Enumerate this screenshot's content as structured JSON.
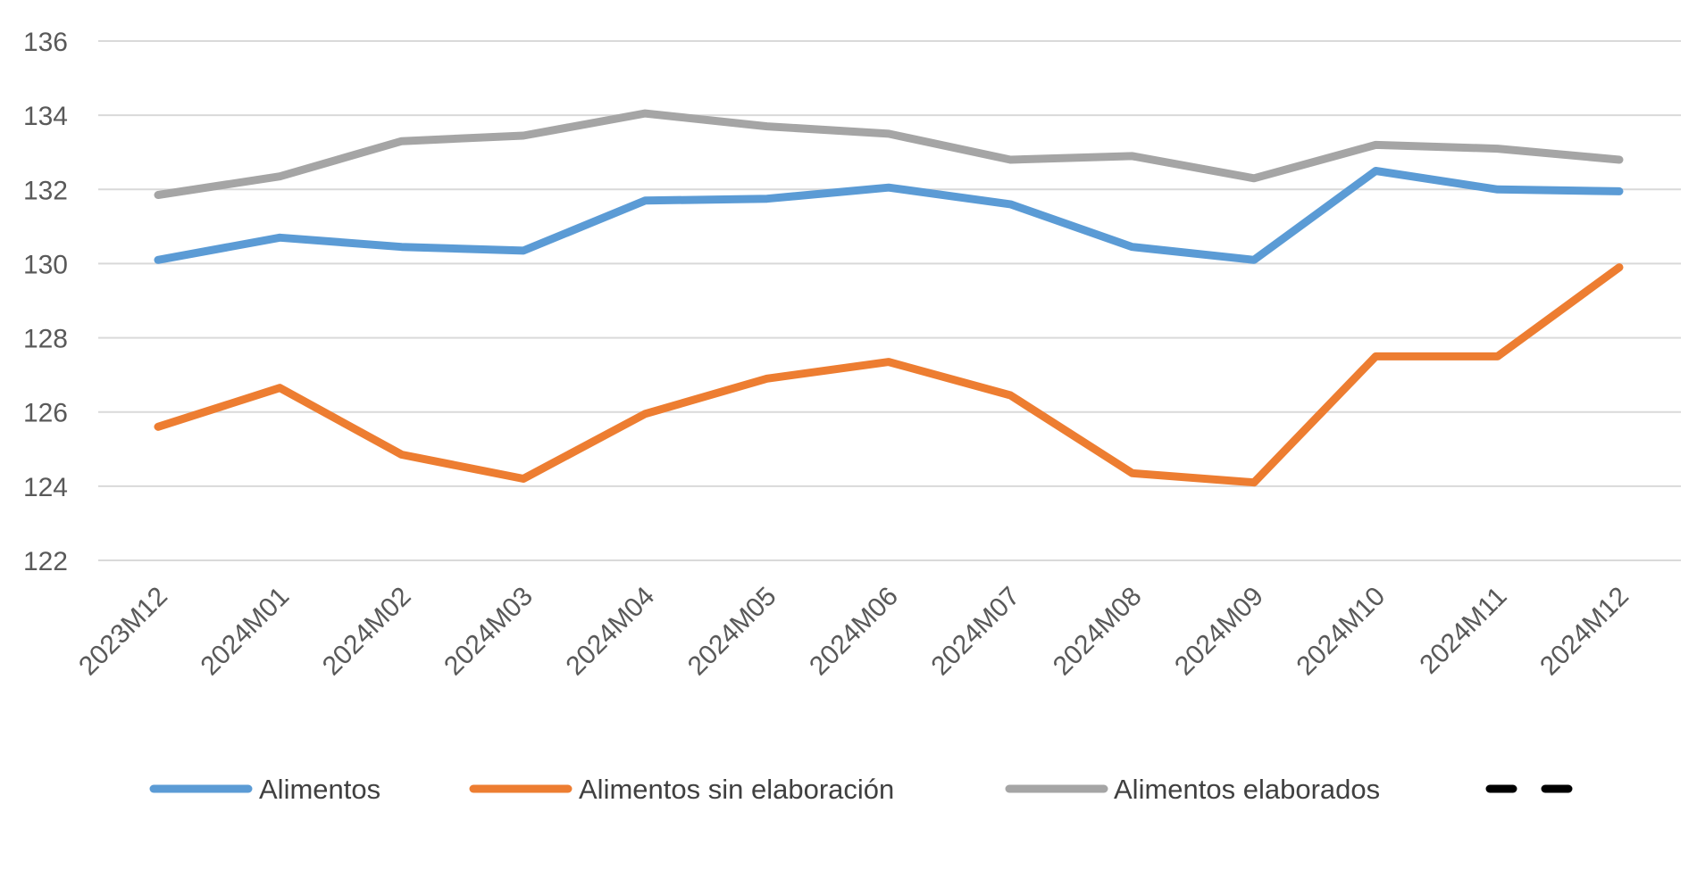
{
  "chart_data": {
    "type": "line",
    "title": "",
    "xlabel": "",
    "ylabel": "",
    "categories": [
      "2023M12",
      "2024M01",
      "2024M02",
      "2024M03",
      "2024M04",
      "2024M05",
      "2024M06",
      "2024M07",
      "2024M08",
      "2024M09",
      "2024M10",
      "2024M11",
      "2024M12"
    ],
    "ylim": [
      122,
      136
    ],
    "yticks": [
      122,
      124,
      126,
      128,
      130,
      132,
      134,
      136
    ],
    "grid": true,
    "legend_position": "bottom",
    "series": [
      {
        "name": "Alimentos",
        "color": "#5b9bd5",
        "dash": "solid",
        "values": [
          130.1,
          130.7,
          130.45,
          130.35,
          131.7,
          131.75,
          132.05,
          131.6,
          130.45,
          130.1,
          132.5,
          132.0,
          131.95
        ]
      },
      {
        "name": "Alimentos sin elaboración",
        "color": "#ed7d31",
        "dash": "solid",
        "values": [
          125.6,
          126.65,
          124.85,
          124.2,
          125.95,
          126.9,
          127.35,
          126.45,
          124.35,
          124.1,
          127.5,
          127.5,
          129.9
        ]
      },
      {
        "name": "Alimentos elaborados",
        "color": "#a5a5a5",
        "dash": "solid",
        "values": [
          131.85,
          132.35,
          133.3,
          133.45,
          134.05,
          133.7,
          133.5,
          132.8,
          132.9,
          132.3,
          133.2,
          133.1,
          132.8
        ]
      }
    ],
    "extra_legend_marker": {
      "color": "#000000",
      "dash": "dashed",
      "label": ""
    }
  }
}
